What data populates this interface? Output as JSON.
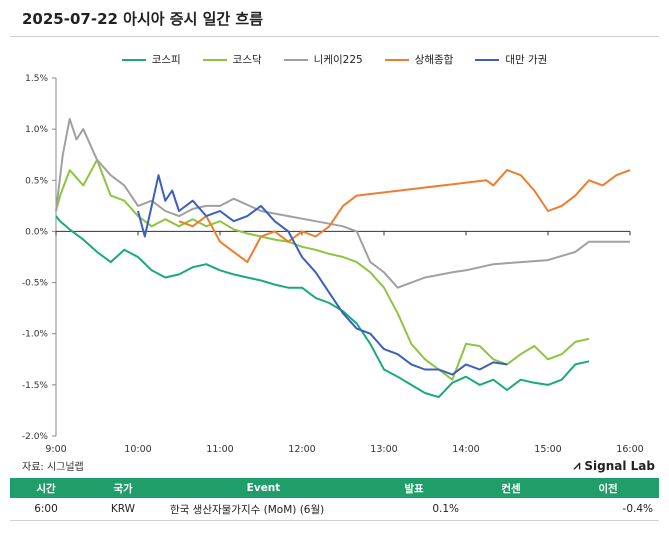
{
  "header": {
    "title": "2025-07-22 아시아 증시 일간 흐름"
  },
  "legend": [
    {
      "name": "코스피",
      "color": "#1aaa7a"
    },
    {
      "name": "코스닥",
      "color": "#8cc63f"
    },
    {
      "name": "니케이225",
      "color": "#a0a0a0"
    },
    {
      "name": "상해종합",
      "color": "#ef7d2e"
    },
    {
      "name": "대만 가권",
      "color": "#3b5fc0"
    }
  ],
  "footer": {
    "source": "자료: 시그널랩",
    "brand": "Signal Lab",
    "brand_icon": "signal-chart-icon"
  },
  "table": {
    "headers": [
      "시간",
      "국가",
      "Event",
      "발표",
      "컨센",
      "이전"
    ],
    "rows": [
      [
        "6:00",
        "KRW",
        "한국 생산자물가지수 (MoM) (6월)",
        "0.1%",
        "",
        "-0.4%"
      ]
    ]
  },
  "chart_data": {
    "type": "line",
    "xlim": [
      "9:00",
      "16:00"
    ],
    "ylim": [
      -2.0,
      1.5
    ],
    "x_ticks": [
      "9:00",
      "10:00",
      "11:00",
      "12:00",
      "13:00",
      "14:00",
      "15:00",
      "16:00"
    ],
    "y_ticks": [
      "1.5%",
      "1.0%",
      "0.5%",
      "0.0%",
      "-0.5%",
      "-1.0%",
      "-1.5%",
      "-2.0%"
    ],
    "grid": false,
    "legend_position": "top",
    "series": [
      {
        "name": "코스피",
        "color": "#1aaa7a",
        "x": [
          "9:00",
          "9:03",
          "9:10",
          "9:20",
          "9:30",
          "9:40",
          "9:50",
          "10:00",
          "10:10",
          "10:20",
          "10:30",
          "10:40",
          "10:50",
          "11:00",
          "11:10",
          "11:20",
          "11:30",
          "11:40",
          "11:50",
          "12:00",
          "12:10",
          "12:20",
          "12:30",
          "12:40",
          "12:50",
          "13:00",
          "13:10",
          "13:20",
          "13:30",
          "13:40",
          "13:50",
          "14:00",
          "14:10",
          "14:20",
          "14:30",
          "14:40",
          "14:50",
          "15:00",
          "15:10",
          "15:20",
          "15:30"
        ],
        "y": [
          0.15,
          0.1,
          0.02,
          -0.08,
          -0.2,
          -0.3,
          -0.18,
          -0.25,
          -0.38,
          -0.45,
          -0.42,
          -0.35,
          -0.32,
          -0.38,
          -0.42,
          -0.45,
          -0.48,
          -0.52,
          -0.55,
          -0.55,
          -0.65,
          -0.7,
          -0.78,
          -0.9,
          -1.1,
          -1.35,
          -1.42,
          -1.5,
          -1.58,
          -1.62,
          -1.48,
          -1.42,
          -1.5,
          -1.45,
          -1.55,
          -1.45,
          -1.48,
          -1.5,
          -1.45,
          -1.3,
          -1.27
        ]
      },
      {
        "name": "코스닥",
        "color": "#8cc63f",
        "x": [
          "9:00",
          "9:03",
          "9:10",
          "9:20",
          "9:30",
          "9:40",
          "9:50",
          "10:00",
          "10:10",
          "10:20",
          "10:30",
          "10:40",
          "10:50",
          "11:00",
          "11:10",
          "11:20",
          "11:30",
          "11:40",
          "11:50",
          "12:00",
          "12:10",
          "12:20",
          "12:30",
          "12:40",
          "12:50",
          "13:00",
          "13:10",
          "13:20",
          "13:30",
          "13:40",
          "13:50",
          "14:00",
          "14:10",
          "14:20",
          "14:30",
          "14:40",
          "14:50",
          "15:00",
          "15:10",
          "15:20",
          "15:30"
        ],
        "y": [
          0.2,
          0.35,
          0.6,
          0.45,
          0.7,
          0.35,
          0.3,
          0.15,
          0.05,
          0.12,
          0.05,
          0.12,
          0.05,
          0.1,
          0.02,
          -0.02,
          -0.05,
          -0.08,
          -0.1,
          -0.15,
          -0.18,
          -0.22,
          -0.25,
          -0.3,
          -0.4,
          -0.55,
          -0.8,
          -1.1,
          -1.25,
          -1.35,
          -1.45,
          -1.1,
          -1.12,
          -1.25,
          -1.3,
          -1.2,
          -1.12,
          -1.25,
          -1.2,
          -1.08,
          -1.05
        ]
      },
      {
        "name": "니케이225",
        "color": "#a0a0a0",
        "x": [
          "9:00",
          "9:05",
          "9:10",
          "9:15",
          "9:20",
          "9:30",
          "9:40",
          "9:50",
          "10:00",
          "10:10",
          "10:20",
          "10:30",
          "10:40",
          "10:50",
          "11:00",
          "11:10",
          "11:30",
          "11:50",
          "12:10",
          "12:30",
          "12:40",
          "12:50",
          "13:00",
          "13:10",
          "13:20",
          "13:30",
          "13:50",
          "14:00",
          "14:20",
          "14:40",
          "15:00",
          "15:20",
          "15:30",
          "16:00"
        ],
        "y": [
          0.2,
          0.75,
          1.1,
          0.9,
          1.0,
          0.7,
          0.55,
          0.45,
          0.25,
          0.3,
          0.2,
          0.15,
          0.22,
          0.25,
          0.25,
          0.32,
          0.2,
          0.15,
          0.1,
          0.05,
          0.0,
          -0.3,
          -0.4,
          -0.55,
          -0.5,
          -0.45,
          -0.4,
          -0.38,
          -0.32,
          -0.3,
          -0.28,
          -0.2,
          -0.1,
          -0.1
        ]
      },
      {
        "name": "상해종합",
        "color": "#ef7d2e",
        "x": [
          "10:30",
          "10:40",
          "10:50",
          "11:00",
          "11:10",
          "11:20",
          "11:30",
          "11:40",
          "11:50",
          "12:00",
          "12:10",
          "12:20",
          "12:30",
          "12:40",
          "14:15",
          "14:20",
          "14:30",
          "14:40",
          "14:50",
          "15:00",
          "15:10",
          "15:20",
          "15:30",
          "15:40",
          "15:50",
          "16:00"
        ],
        "y": [
          0.1,
          0.05,
          0.15,
          -0.1,
          -0.2,
          -0.3,
          -0.05,
          0.0,
          -0.1,
          0.0,
          -0.05,
          0.05,
          0.25,
          0.35,
          0.5,
          0.45,
          0.6,
          0.55,
          0.4,
          0.2,
          0.25,
          0.35,
          0.5,
          0.45,
          0.55,
          0.6
        ]
      },
      {
        "name": "대만 가권",
        "color": "#3b5fc0",
        "x": [
          "10:00",
          "10:05",
          "10:10",
          "10:15",
          "10:20",
          "10:25",
          "10:30",
          "10:40",
          "10:50",
          "11:00",
          "11:10",
          "11:20",
          "11:30",
          "11:40",
          "11:50",
          "12:00",
          "12:10",
          "12:20",
          "12:30",
          "12:40",
          "12:50",
          "13:00",
          "13:10",
          "13:20",
          "13:30",
          "13:40",
          "13:50",
          "14:00",
          "14:10",
          "14:20",
          "14:30"
        ],
        "y": [
          0.2,
          -0.05,
          0.25,
          0.55,
          0.3,
          0.4,
          0.2,
          0.3,
          0.15,
          0.2,
          0.1,
          0.15,
          0.25,
          0.1,
          0.0,
          -0.25,
          -0.4,
          -0.6,
          -0.8,
          -0.95,
          -1.0,
          -1.15,
          -1.2,
          -1.3,
          -1.35,
          -1.35,
          -1.4,
          -1.3,
          -1.35,
          -1.28,
          -1.3
        ]
      }
    ]
  }
}
